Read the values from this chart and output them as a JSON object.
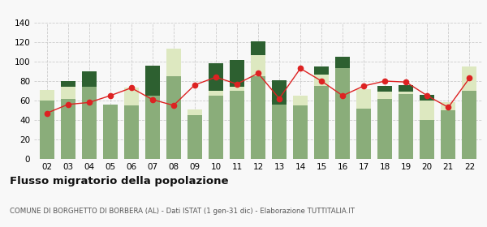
{
  "years": [
    "02",
    "03",
    "04",
    "05",
    "06",
    "07",
    "08",
    "09",
    "10",
    "11",
    "12",
    "13",
    "14",
    "15",
    "16",
    "17",
    "18",
    "19",
    "20",
    "21",
    "22"
  ],
  "iscritti_comuni": [
    60,
    62,
    74,
    56,
    55,
    65,
    85,
    45,
    65,
    70,
    85,
    56,
    55,
    75,
    93,
    52,
    62,
    67,
    40,
    50,
    70
  ],
  "iscritti_estero": [
    11,
    12,
    0,
    0,
    18,
    0,
    28,
    6,
    5,
    4,
    22,
    0,
    10,
    12,
    0,
    20,
    7,
    2,
    20,
    8,
    25
  ],
  "iscritti_altri": [
    0,
    6,
    16,
    0,
    0,
    31,
    0,
    0,
    28,
    28,
    14,
    25,
    0,
    8,
    12,
    0,
    6,
    7,
    6,
    0,
    0
  ],
  "cancellati": [
    47,
    56,
    58,
    65,
    73,
    61,
    55,
    76,
    84,
    77,
    88,
    62,
    93,
    80,
    65,
    75,
    80,
    79,
    65,
    53,
    83
  ],
  "color_comuni": "#8aad7a",
  "color_estero": "#dde8c0",
  "color_altri": "#2d6030",
  "color_cancellati": "#dd2222",
  "ylim": [
    0,
    140
  ],
  "yticks": [
    0,
    20,
    40,
    60,
    80,
    100,
    120,
    140
  ],
  "title": "Flusso migratorio della popolazione",
  "subtitle": "COMUNE DI BORGHETTO DI BORBERA (AL) - Dati ISTAT (1 gen-31 dic) - Elaborazione TUTTITALIA.IT",
  "bg_color": "#f8f8f8",
  "grid_color": "#cccccc"
}
